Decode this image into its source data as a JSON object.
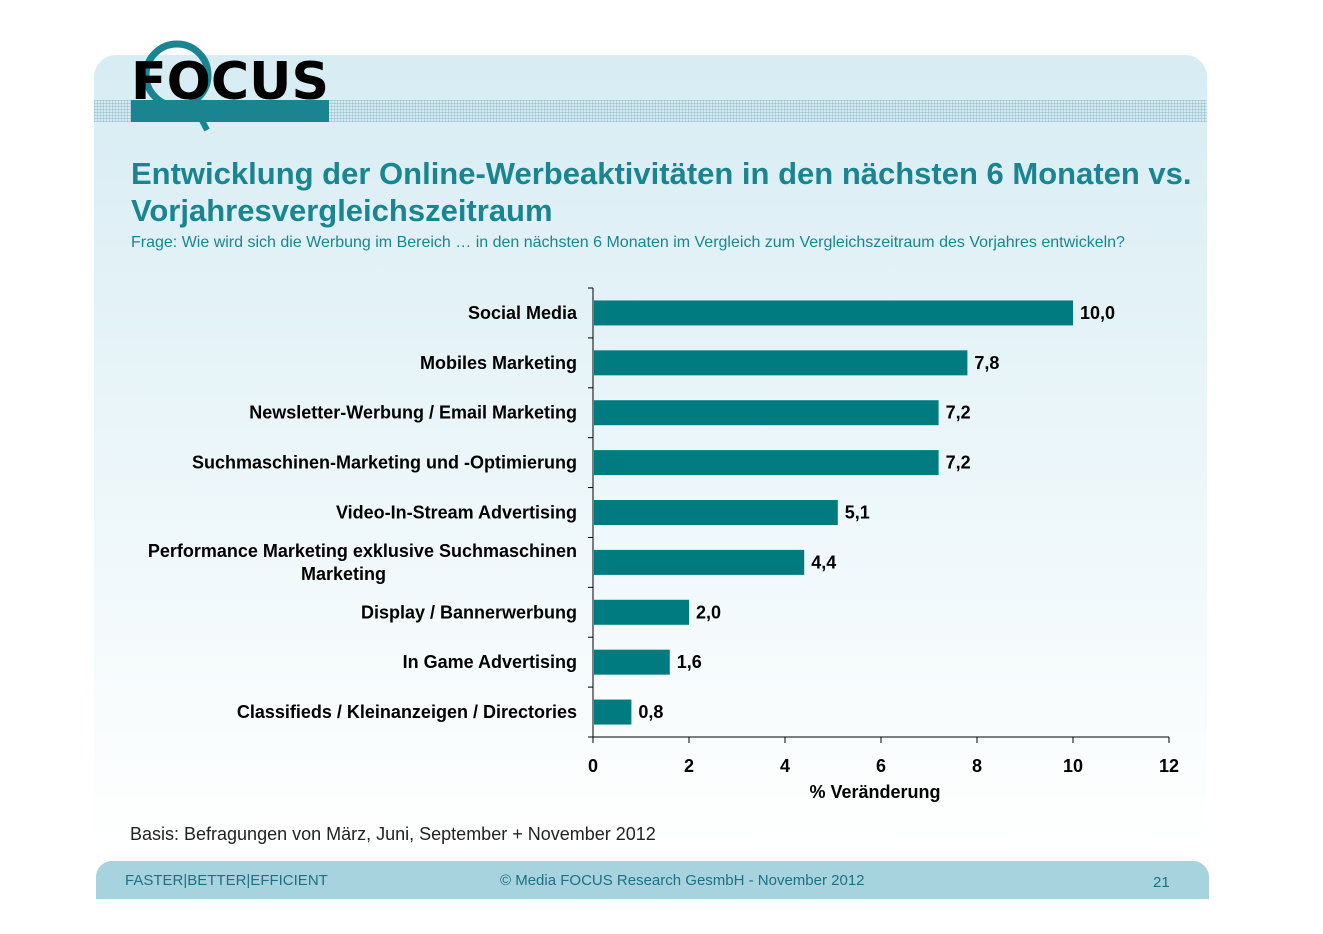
{
  "logo": {
    "text": "FOCUS",
    "icon": "magnifier-logo-icon"
  },
  "title": "Entwicklung der Online-Werbeaktivitäten in den nächsten 6 Monaten vs. Vorjahresvergleichszeitraum",
  "subtitle": "Frage: Wie wird sich die Werbung im Bereich … in den nächsten 6 Monaten im Vergleich zum Vergleichszeitraum des Vorjahres entwickeln?",
  "basis": "Basis: Befragungen von März, Juni, September + November 2012",
  "footer": {
    "left": "FASTER|BETTER|EFFICIENT",
    "center": "© Media FOCUS Research GesmbH - November 2012",
    "page": "21"
  },
  "colors": {
    "bar": "#007c80",
    "title": "#1a8591",
    "footer_bg": "#a7d3df"
  },
  "chart_data": {
    "type": "bar",
    "orientation": "horizontal",
    "categories": [
      [
        "Social Media"
      ],
      [
        "Mobiles Marketing"
      ],
      [
        "Newsletter-Werbung / Email Marketing"
      ],
      [
        "Suchmaschinen-Marketing und -Optimierung"
      ],
      [
        "Video-In-Stream Advertising"
      ],
      [
        "Performance Marketing exklusive Suchmaschinen",
        "Marketing"
      ],
      [
        "Display / Bannerwerbung"
      ],
      [
        "In Game Advertising"
      ],
      [
        "Classifieds / Kleinanzeigen / Directories"
      ]
    ],
    "values": [
      10.0,
      7.8,
      7.2,
      7.2,
      5.1,
      4.4,
      2.0,
      1.6,
      0.8
    ],
    "value_labels": [
      "10,0",
      "7,8",
      "7,2",
      "7,2",
      "5,1",
      "4,4",
      "2,0",
      "1,6",
      "0,8"
    ],
    "xlabel": "% Veränderung",
    "xlim": [
      0,
      12
    ],
    "xticks": [
      0,
      2,
      4,
      6,
      8,
      10,
      12
    ],
    "grid": false,
    "legend": "none"
  }
}
